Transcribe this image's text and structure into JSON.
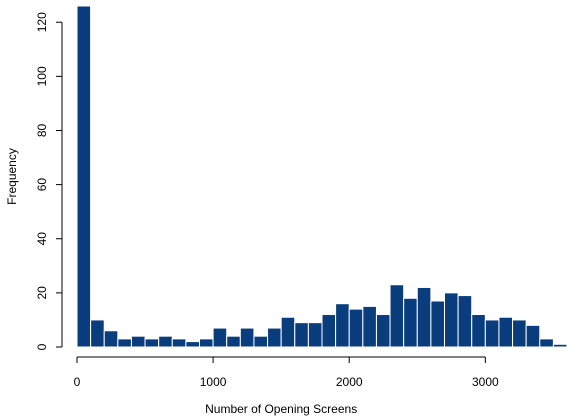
{
  "chart_data": {
    "type": "bar",
    "xlabel": "Number of Opening Screens",
    "ylabel": "Frequency",
    "xlim": [
      0,
      3600
    ],
    "ylim": [
      0,
      126
    ],
    "x_ticks": [
      0,
      1000,
      2000,
      3000
    ],
    "y_ticks": [
      0,
      20,
      40,
      60,
      80,
      100,
      120
    ],
    "bin_width": 100,
    "bin_starts": [
      0,
      100,
      200,
      300,
      400,
      500,
      600,
      700,
      800,
      900,
      1000,
      1100,
      1200,
      1300,
      1400,
      1500,
      1600,
      1700,
      1800,
      1900,
      2000,
      2100,
      2200,
      2300,
      2400,
      2500,
      2600,
      2700,
      2800,
      2900,
      3000,
      3100,
      3200,
      3300,
      3400,
      3500
    ],
    "values": [
      126,
      10,
      6,
      3,
      4,
      3,
      4,
      3,
      2,
      3,
      7,
      4,
      7,
      4,
      7,
      11,
      9,
      9,
      12,
      16,
      14,
      15,
      12,
      23,
      18,
      22,
      17,
      20,
      19,
      12,
      10,
      11,
      10,
      8,
      3,
      1
    ],
    "bar_color": "#0a3d7d",
    "grid": false,
    "legend": "none"
  }
}
